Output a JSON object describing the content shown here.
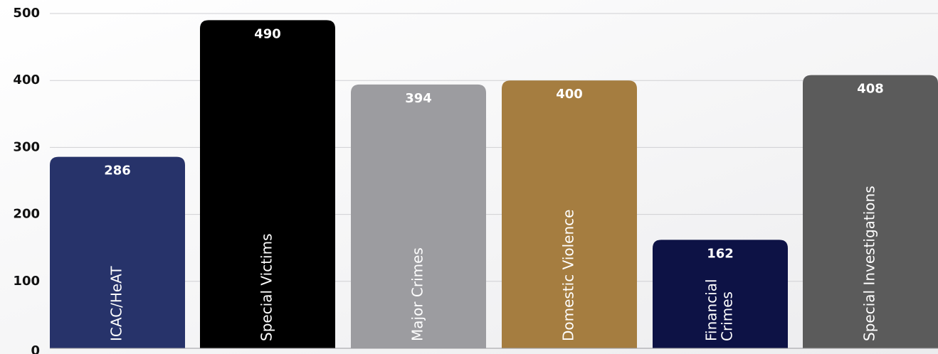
{
  "chart_data": {
    "type": "bar",
    "ylim": [
      0,
      500
    ],
    "yticks": [
      0,
      100,
      200,
      300,
      400,
      500
    ],
    "grid": true,
    "bars": [
      {
        "label": "ICAC/HeAT",
        "lines": [
          "ICAC/HeAT"
        ],
        "value": 286,
        "color": "#27336a"
      },
      {
        "label": "Special Victims",
        "lines": [
          "Special Victims"
        ],
        "value": 490,
        "color": "#000000"
      },
      {
        "label": "Major Crimes",
        "lines": [
          "Major Crimes"
        ],
        "value": 394,
        "color": "#9c9ca0"
      },
      {
        "label": "Domestic Violence",
        "lines": [
          "Domestic Violence"
        ],
        "value": 400,
        "color": "#a57d40"
      },
      {
        "label": "Financial Crimes",
        "lines": [
          "Financial",
          "Crimes"
        ],
        "value": 162,
        "color": "#0d1245"
      },
      {
        "label": "Special Investigations",
        "lines": [
          "Special Investigations"
        ],
        "value": 408,
        "color": "#5b5b5b"
      }
    ]
  }
}
